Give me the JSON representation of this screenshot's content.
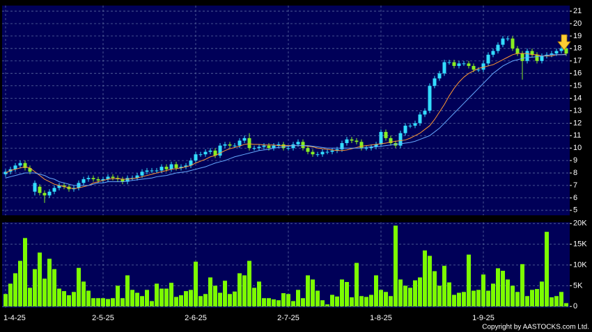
{
  "chart_data": [
    {
      "type": "candlestick",
      "up_color": "#33ddff",
      "down_color": "#88ee22",
      "categories": [
        "1-4-25",
        null,
        null,
        null,
        null,
        null,
        null,
        null,
        null,
        null,
        null,
        null,
        null,
        null,
        null,
        null,
        null,
        null,
        null,
        null,
        "2-5-25",
        null,
        null,
        null,
        null,
        null,
        null,
        null,
        null,
        null,
        null,
        null,
        null,
        null,
        null,
        null,
        null,
        null,
        null,
        "2-6-25",
        null,
        null,
        null,
        null,
        null,
        null,
        null,
        null,
        null,
        null,
        null,
        null,
        null,
        null,
        null,
        null,
        null,
        null,
        "2-7-25",
        null,
        null,
        null,
        null,
        null,
        null,
        null,
        null,
        null,
        null,
        null,
        null,
        null,
        null,
        null,
        null,
        null,
        null,
        "1-8-25",
        null,
        null,
        null,
        null,
        null,
        null,
        null,
        null,
        null,
        null,
        null,
        null,
        null,
        null,
        null,
        null,
        null,
        null,
        null,
        null,
        "1-9-25",
        null,
        null,
        null,
        null,
        null,
        null,
        null,
        null,
        null,
        null,
        null,
        null,
        null,
        null,
        null,
        null,
        null
      ],
      "open": [
        7.9,
        8.1,
        8.3,
        8.6,
        8.8,
        8.4,
        6.5,
        6.9,
        6.4,
        6.2,
        6.5,
        6.8,
        7.0,
        6.9,
        6.7,
        6.8,
        7.2,
        7.5,
        7.6,
        7.5,
        7.4,
        7.5,
        7.7,
        7.6,
        7.5,
        7.3,
        7.6,
        7.6,
        7.8,
        8.1,
        8.2,
        8.2,
        8.2,
        8.5,
        8.3,
        8.7,
        8.4,
        8.5,
        8.6,
        9.0,
        9.5,
        9.5,
        9.7,
        9.8,
        9.4,
        10.2,
        10.3,
        10.2,
        10.2,
        10.6,
        10.8,
        10.0,
        10.0,
        10.1,
        10.2,
        10.0,
        10.2,
        10.3,
        10.0,
        10.0,
        10.3,
        10.5,
        10.0,
        9.7,
        9.5,
        9.5,
        9.7,
        9.7,
        9.8,
        9.9,
        10.4,
        10.7,
        10.6,
        10.5,
        10.0,
        10.0,
        10.1,
        10.3,
        11.3,
        10.8,
        10.4,
        10.2,
        11.2,
        11.8,
        11.8,
        12.0,
        12.7,
        13.0,
        15.0,
        15.6,
        16.0,
        16.9,
        16.9,
        16.6,
        16.8,
        16.8,
        16.6,
        16.3,
        16.3,
        16.8,
        17.5,
        17.8,
        18.3,
        18.8,
        18.8,
        18.0,
        17.6,
        17.0,
        17.8,
        17.5,
        17.0,
        17.4,
        17.5,
        17.6,
        17.8,
        18.0
      ],
      "high": [
        8.3,
        8.5,
        8.8,
        9.0,
        9.0,
        8.6,
        7.4,
        7.1,
        6.6,
        6.7,
        7.0,
        7.2,
        7.2,
        7.1,
        7.0,
        7.4,
        7.7,
        7.8,
        7.8,
        7.7,
        7.7,
        7.9,
        7.9,
        7.8,
        7.7,
        7.8,
        7.8,
        8.0,
        8.3,
        8.4,
        8.4,
        8.4,
        8.7,
        8.7,
        8.9,
        8.9,
        8.7,
        8.8,
        9.2,
        9.7,
        9.7,
        9.9,
        10.0,
        10.0,
        10.4,
        10.5,
        10.5,
        10.4,
        10.8,
        11.0,
        11.2,
        10.2,
        10.3,
        10.4,
        10.4,
        10.4,
        10.5,
        10.5,
        10.2,
        10.5,
        10.7,
        10.7,
        10.2,
        9.9,
        9.7,
        9.9,
        9.9,
        10.0,
        10.1,
        10.6,
        10.9,
        10.9,
        10.8,
        10.7,
        10.2,
        10.3,
        10.5,
        11.5,
        11.5,
        11.0,
        10.6,
        11.4,
        12.0,
        12.0,
        12.2,
        12.9,
        13.2,
        15.2,
        15.8,
        16.2,
        17.1,
        17.1,
        17.1,
        17.0,
        17.0,
        17.0,
        16.8,
        16.5,
        17.0,
        17.7,
        18.0,
        18.5,
        19.0,
        19.0,
        19.0,
        18.2,
        17.8,
        18.0,
        18.0,
        17.7,
        17.6,
        17.7,
        17.8,
        18.0,
        18.2,
        18.2
      ],
      "low": [
        7.7,
        7.9,
        8.1,
        8.4,
        8.2,
        7.9,
        6.2,
        6.2,
        5.6,
        6.0,
        6.3,
        6.6,
        6.7,
        6.5,
        6.5,
        6.6,
        7.0,
        7.3,
        7.3,
        7.2,
        7.2,
        7.3,
        7.4,
        7.3,
        7.1,
        7.1,
        7.4,
        7.4,
        7.6,
        7.9,
        8.0,
        8.0,
        8.0,
        8.1,
        8.1,
        8.2,
        8.2,
        8.3,
        8.4,
        8.8,
        9.3,
        9.3,
        9.5,
        9.2,
        9.2,
        10.0,
        10.0,
        10.0,
        10.0,
        10.4,
        9.8,
        9.8,
        9.8,
        9.9,
        9.8,
        9.8,
        10.0,
        9.8,
        9.8,
        9.8,
        10.1,
        9.8,
        9.5,
        9.3,
        9.3,
        9.3,
        9.5,
        9.5,
        9.6,
        9.7,
        10.2,
        10.4,
        10.3,
        9.8,
        9.8,
        9.8,
        9.9,
        10.1,
        10.6,
        10.2,
        10.0,
        10.0,
        11.0,
        11.6,
        11.6,
        11.8,
        12.5,
        12.8,
        14.8,
        15.4,
        15.8,
        16.7,
        16.4,
        16.4,
        16.6,
        16.4,
        16.1,
        16.1,
        16.1,
        16.6,
        17.3,
        17.6,
        18.1,
        18.6,
        17.8,
        17.4,
        15.5,
        16.8,
        17.3,
        16.8,
        16.8,
        17.2,
        17.3,
        17.4,
        17.6,
        17.4
      ],
      "close": [
        8.1,
        8.3,
        8.6,
        8.8,
        8.4,
        8.1,
        7.2,
        6.4,
        6.2,
        6.5,
        6.8,
        7.0,
        6.9,
        6.7,
        6.8,
        7.2,
        7.5,
        7.6,
        7.5,
        7.4,
        7.5,
        7.7,
        7.6,
        7.5,
        7.3,
        7.6,
        7.6,
        7.8,
        8.1,
        8.2,
        8.2,
        8.2,
        8.5,
        8.3,
        8.7,
        8.4,
        8.5,
        8.6,
        9.0,
        9.5,
        9.5,
        9.7,
        9.8,
        9.4,
        10.2,
        10.3,
        10.2,
        10.2,
        10.6,
        10.8,
        10.0,
        10.0,
        10.1,
        10.2,
        10.0,
        10.2,
        10.3,
        10.0,
        10.0,
        10.3,
        10.5,
        10.0,
        9.7,
        9.5,
        9.5,
        9.7,
        9.7,
        9.8,
        9.9,
        10.4,
        10.7,
        10.6,
        10.5,
        10.0,
        10.0,
        10.1,
        10.3,
        11.3,
        10.8,
        10.4,
        10.2,
        11.2,
        11.8,
        11.8,
        12.0,
        12.7,
        13.0,
        15.0,
        15.6,
        16.0,
        16.9,
        16.9,
        16.6,
        16.8,
        16.8,
        16.6,
        16.3,
        16.3,
        16.8,
        17.5,
        17.8,
        18.3,
        18.8,
        18.8,
        18.0,
        17.6,
        17.0,
        17.8,
        17.5,
        17.0,
        17.4,
        17.5,
        17.6,
        17.8,
        18.0,
        17.6
      ],
      "series": [
        {
          "color": "#ff9933",
          "values": [
            8.0,
            8.2,
            8.3,
            8.4,
            8.5,
            8.4,
            8.1,
            7.8,
            7.5,
            7.3,
            7.1,
            7.0,
            6.9,
            6.8,
            6.75,
            6.8,
            6.9,
            7.0,
            7.2,
            7.3,
            7.4,
            7.5,
            7.55,
            7.55,
            7.5,
            7.5,
            7.55,
            7.6,
            7.7,
            7.8,
            7.9,
            8.0,
            8.1,
            8.2,
            8.3,
            8.35,
            8.4,
            8.5,
            8.6,
            8.8,
            8.95,
            9.1,
            9.3,
            9.4,
            9.6,
            9.8,
            9.95,
            10.05,
            10.15,
            10.3,
            10.35,
            10.3,
            10.3,
            10.25,
            10.25,
            10.25,
            10.2,
            10.2,
            10.2,
            10.2,
            10.2,
            10.2,
            10.15,
            10.1,
            10.0,
            9.95,
            9.9,
            9.85,
            9.8,
            9.8,
            9.85,
            9.95,
            10.05,
            10.15,
            10.2,
            10.25,
            10.3,
            10.35,
            10.4,
            10.5,
            10.55,
            10.6,
            10.65,
            10.8,
            11.0,
            11.2,
            11.5,
            11.8,
            12.3,
            12.9,
            13.5,
            14.2,
            14.8,
            15.3,
            15.7,
            16.0,
            16.2,
            16.4,
            16.5,
            16.6,
            16.7,
            16.9,
            17.1,
            17.3,
            17.5,
            17.6,
            17.6,
            17.6,
            17.5,
            17.5,
            17.4,
            17.4,
            17.4,
            17.5,
            17.5,
            17.55
          ]
        },
        {
          "color": "#66aaff",
          "values": [
            7.6,
            7.7,
            7.8,
            7.9,
            8.0,
            8.0,
            8.0,
            7.9,
            7.8,
            7.6,
            7.5,
            7.3,
            7.2,
            7.1,
            7.0,
            7.0,
            7.0,
            7.0,
            7.1,
            7.2,
            7.2,
            7.3,
            7.3,
            7.3,
            7.3,
            7.35,
            7.4,
            7.45,
            7.5,
            7.55,
            7.6,
            7.7,
            7.75,
            7.8,
            7.9,
            8.0,
            8.05,
            8.1,
            8.2,
            8.3,
            8.4,
            8.5,
            8.65,
            8.8,
            8.9,
            9.0,
            9.15,
            9.3,
            9.4,
            9.5,
            9.6,
            9.7,
            9.8,
            9.85,
            9.9,
            10.0,
            10.05,
            10.1,
            10.15,
            10.2,
            10.2,
            10.2,
            10.2,
            10.15,
            10.1,
            10.05,
            10.0,
            10.0,
            10.0,
            10.0,
            10.0,
            10.0,
            10.0,
            10.0,
            10.05,
            10.1,
            10.1,
            10.15,
            10.2,
            10.25,
            10.3,
            10.35,
            10.4,
            10.45,
            10.55,
            10.7,
            10.85,
            11.0,
            11.3,
            11.6,
            12.0,
            12.4,
            12.8,
            13.2,
            13.6,
            14.0,
            14.4,
            14.8,
            15.2,
            15.6,
            16.0,
            16.3,
            16.6,
            16.8,
            17.0,
            17.1,
            17.2,
            17.3,
            17.3,
            17.35,
            17.4,
            17.45,
            17.5,
            17.5,
            17.5,
            17.5
          ]
        }
      ],
      "ylim": [
        4.6,
        21.45
      ],
      "yticks": [
        5,
        6,
        7,
        8,
        9,
        10,
        11,
        12,
        13,
        14,
        15,
        16,
        17,
        18,
        19,
        20,
        21
      ],
      "grid": true
    },
    {
      "type": "bar",
      "color": "#7cfc00",
      "values": [
        3000,
        5500,
        8000,
        11000,
        16500,
        4500,
        9000,
        13000,
        6700,
        11500,
        9000,
        4300,
        3700,
        2700,
        3500,
        9300,
        6000,
        3800,
        2000,
        2000,
        2000,
        1800,
        2000,
        5000,
        2000,
        7500,
        4000,
        3300,
        2500,
        4000,
        1300,
        5500,
        4300,
        4300,
        5700,
        2300,
        2700,
        3700,
        4000,
        10800,
        2500,
        3000,
        7000,
        5000,
        3300,
        6200,
        3000,
        3600,
        8000,
        7500,
        11000,
        4500,
        6000,
        2000,
        2000,
        1700,
        1500,
        3200,
        3000,
        1300,
        4000,
        2000,
        7500,
        6500,
        3800,
        1500,
        500,
        2800,
        2400,
        6500,
        5900,
        2200,
        10500,
        2500,
        2300,
        2800,
        7500,
        4000,
        3500,
        2500,
        19500,
        6500,
        5000,
        4500,
        6300,
        7000,
        13500,
        12200,
        8500,
        5000,
        9800,
        5800,
        2800,
        3300,
        3500,
        12500,
        3800,
        4000,
        7700,
        3800,
        5500,
        9200,
        8600,
        6500,
        5000,
        3500,
        10200,
        2500,
        4000,
        4200,
        6000,
        18000,
        2200,
        2500,
        3500,
        800
      ],
      "ylim": [
        -300,
        20300
      ],
      "yticks": [
        0,
        {
          "value": 5000,
          "label": "5K"
        },
        {
          "value": 10000,
          "label": "10K"
        },
        {
          "value": 15000,
          "label": "15K"
        },
        {
          "value": 20000,
          "label": "20K"
        }
      ],
      "grid": true
    }
  ],
  "footer": "Copyright by AASTOCKS.com Ltd."
}
